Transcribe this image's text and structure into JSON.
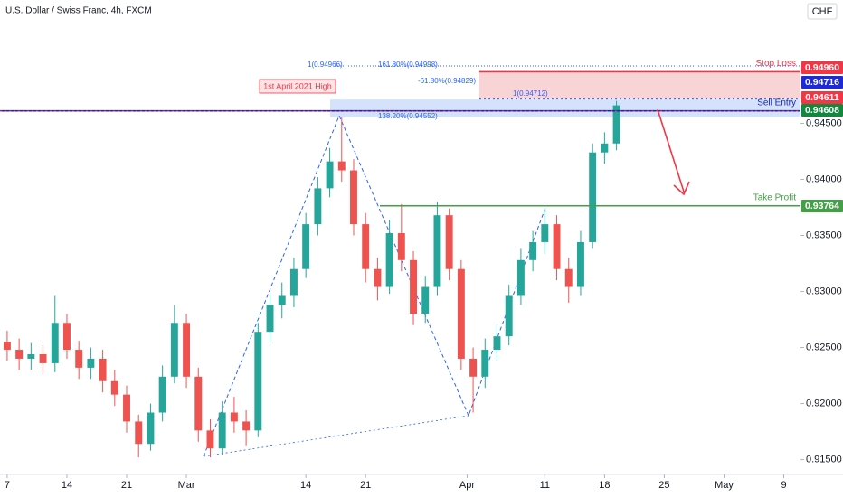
{
  "chart_data": {
    "type": "candlestick",
    "title": "U.S. Dollar / Swiss Franc, 4h, FXCM",
    "currency": "CHF",
    "up_color": "#26a69a",
    "down_color": "#ef5350",
    "open": [
      0.9255,
      0.9248,
      0.924,
      0.9244,
      0.9236,
      0.9272,
      0.9248,
      0.9232,
      0.924,
      0.922,
      0.9208,
      0.9184,
      0.9164,
      0.9192,
      0.9224,
      0.9272,
      0.9224,
      0.9176,
      0.916,
      0.9192,
      0.9184,
      0.9176,
      0.9264,
      0.9288,
      0.9296,
      0.932,
      0.936,
      0.9392,
      0.9416,
      0.9408,
      0.936,
      0.932,
      0.9304,
      0.9352,
      0.9328,
      0.928,
      0.9304,
      0.9368,
      0.932,
      0.924,
      0.9224,
      0.9248,
      0.926,
      0.9296,
      0.9328,
      0.9344,
      0.936,
      0.932,
      0.9304,
      0.9344,
      0.9424,
      0.9432
    ],
    "high": [
      0.9265,
      0.9258,
      0.9254,
      0.9252,
      0.9296,
      0.928,
      0.9256,
      0.925,
      0.9248,
      0.923,
      0.9216,
      0.919,
      0.92,
      0.9234,
      0.9288,
      0.928,
      0.9232,
      0.9186,
      0.9202,
      0.9206,
      0.9194,
      0.9272,
      0.9298,
      0.9308,
      0.933,
      0.937,
      0.9402,
      0.9428,
      0.9456,
      0.9418,
      0.937,
      0.933,
      0.9364,
      0.9378,
      0.9336,
      0.9314,
      0.938,
      0.9374,
      0.9328,
      0.925,
      0.9258,
      0.927,
      0.9306,
      0.9338,
      0.9354,
      0.9374,
      0.9368,
      0.933,
      0.9354,
      0.9432,
      0.9442,
      0.947
    ],
    "low": [
      0.9238,
      0.923,
      0.923,
      0.9226,
      0.9228,
      0.924,
      0.9222,
      0.9222,
      0.921,
      0.9198,
      0.9174,
      0.9152,
      0.9158,
      0.9184,
      0.9218,
      0.9214,
      0.9166,
      0.9152,
      0.9154,
      0.9174,
      0.9162,
      0.917,
      0.9254,
      0.9276,
      0.9286,
      0.9312,
      0.935,
      0.9384,
      0.9398,
      0.935,
      0.9308,
      0.9292,
      0.9298,
      0.9318,
      0.927,
      0.9272,
      0.9296,
      0.931,
      0.923,
      0.9192,
      0.9214,
      0.9238,
      0.9252,
      0.9288,
      0.9318,
      0.9334,
      0.931,
      0.929,
      0.9296,
      0.9338,
      0.9414,
      0.9426
    ],
    "close": [
      0.9248,
      0.924,
      0.9244,
      0.9236,
      0.9272,
      0.9248,
      0.9232,
      0.924,
      0.922,
      0.9208,
      0.9184,
      0.9164,
      0.9192,
      0.9224,
      0.9272,
      0.9224,
      0.9176,
      0.916,
      0.9192,
      0.9184,
      0.9176,
      0.9264,
      0.9288,
      0.9296,
      0.932,
      0.936,
      0.9392,
      0.9416,
      0.9408,
      0.936,
      0.932,
      0.9304,
      0.9352,
      0.9328,
      0.928,
      0.9304,
      0.9368,
      0.932,
      0.924,
      0.9224,
      0.9248,
      0.926,
      0.9296,
      0.9328,
      0.9344,
      0.936,
      0.932,
      0.9304,
      0.9344,
      0.9424,
      0.9432,
      0.9466
    ],
    "xlim": [
      -0.6,
      66.4
    ],
    "xticks": [
      {
        "value": 0,
        "label": "7"
      },
      {
        "value": 5,
        "label": "14"
      },
      {
        "value": 10,
        "label": "21"
      },
      {
        "value": 15,
        "label": "Mar"
      },
      {
        "value": 25,
        "label": "14"
      },
      {
        "value": 30,
        "label": "21"
      },
      {
        "value": 38.5,
        "label": "Apr"
      },
      {
        "value": 45,
        "label": "11"
      },
      {
        "value": 50,
        "label": "18"
      },
      {
        "value": 55,
        "label": "25"
      },
      {
        "value": 60,
        "label": "May"
      },
      {
        "value": 65,
        "label": "9"
      }
    ],
    "ylim": [
      0.914,
      0.956
    ],
    "yticks": [
      {
        "value": 0.915,
        "label": "0.91500"
      },
      {
        "value": 0.92,
        "label": "0.92000"
      },
      {
        "value": 0.925,
        "label": "0.92500"
      },
      {
        "value": 0.93,
        "label": "0.93000"
      },
      {
        "value": 0.935,
        "label": "0.93500"
      },
      {
        "value": 0.94,
        "label": "0.94000"
      },
      {
        "value": 0.945,
        "label": "0.94500"
      }
    ],
    "zones": [
      {
        "from": 0.94716,
        "to": 0.9496,
        "color": "#f8c9cd"
      },
      {
        "from": 0.94552,
        "to": 0.94712,
        "color": "#c9dbfb"
      }
    ],
    "levels": [
      {
        "name": "Stop Loss",
        "value": 0.9496,
        "label": "0.94960",
        "color": "#f23645",
        "box": "#f23645"
      },
      {
        "value": 0.94716,
        "label": "0.94716",
        "color": "#2962ff",
        "box": "#1e2ad6"
      },
      {
        "name": "Sell Entry",
        "value": 0.94611,
        "label": "0.94611",
        "color": "#1c25b8",
        "box": "#f23645"
      },
      {
        "value": 0.94608,
        "label": "0.94608",
        "color": "#f23645",
        "box": "#0f8a3c"
      },
      {
        "name": "Take Profit",
        "value": 0.93764,
        "label": "0.93764",
        "color": "#43a047",
        "box": "#43a047"
      }
    ],
    "annotations": [
      "1(0.94966)",
      "161.80%(0.94998)",
      "-61.80%(0.94829)",
      "1(0.94712)",
      "138.20%(0.94552)",
      "1st April 2021 High"
    ]
  }
}
